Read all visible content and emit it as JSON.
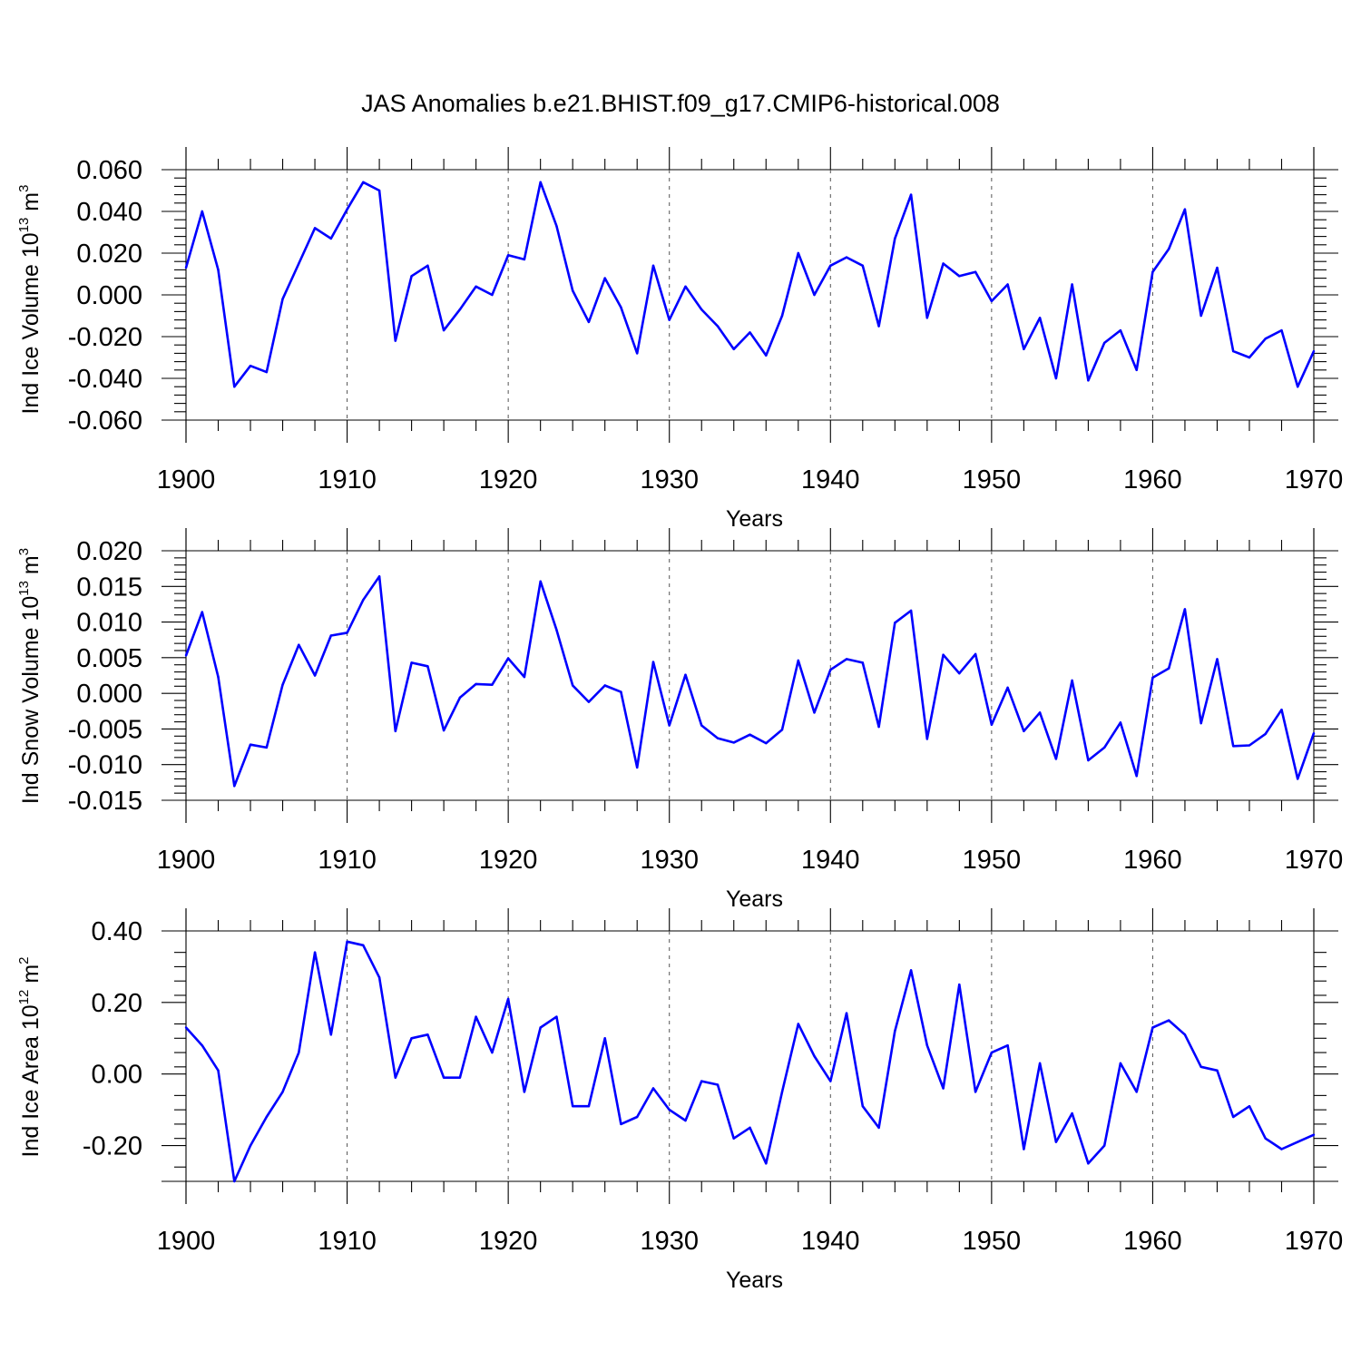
{
  "title": "JAS Anomalies b.e21.BHIST.f09_g17.CMIP6-historical.008",
  "colors": {
    "line": "#0000ff",
    "grid": "#555555",
    "axis": "#000000"
  },
  "chart_data": [
    {
      "type": "line",
      "ylabel": "Ind Ice Volume 10",
      "ylabel_exp": "13",
      "ylabel_unit": " m",
      "ylabel_unit_exp": "3",
      "xlabel": "Years",
      "xlim": [
        1900,
        1970
      ],
      "ylim": [
        -0.06,
        0.06
      ],
      "xticks": [
        1900,
        1910,
        1920,
        1930,
        1940,
        1950,
        1960,
        1970
      ],
      "xtick_labels": [
        "1900",
        "1910",
        "1920",
        "1930",
        "1940",
        "1950",
        "1960",
        "1970"
      ],
      "yticks": [
        -0.06,
        -0.04,
        -0.02,
        0.0,
        0.02,
        0.04,
        0.06
      ],
      "ytick_labels": [
        "-0.060",
        "-0.040",
        "-0.020",
        "0.000",
        "0.020",
        "0.040",
        "0.060"
      ],
      "grid": "vertical dashed at decades",
      "x_start": 1900,
      "values": [
        0.013,
        0.04,
        0.012,
        -0.044,
        -0.034,
        -0.037,
        -0.002,
        0.015,
        0.032,
        0.027,
        0.041,
        0.054,
        0.05,
        -0.022,
        0.009,
        0.014,
        -0.017,
        -0.007,
        0.004,
        0.0,
        0.019,
        0.017,
        0.054,
        0.033,
        0.002,
        -0.013,
        0.008,
        -0.006,
        -0.028,
        0.014,
        -0.012,
        0.004,
        -0.007,
        -0.015,
        -0.026,
        -0.018,
        -0.029,
        -0.01,
        0.02,
        0.0,
        0.014,
        0.018,
        0.014,
        -0.015,
        0.027,
        0.048,
        -0.011,
        0.015,
        0.009,
        0.011,
        -0.003,
        0.005,
        -0.026,
        -0.011,
        -0.04,
        0.005,
        -0.041,
        -0.023,
        -0.017,
        -0.036,
        0.011,
        0.022,
        0.041,
        -0.01,
        0.013,
        -0.027,
        -0.03,
        -0.021,
        -0.017,
        -0.044,
        -0.027
      ]
    },
    {
      "type": "line",
      "ylabel": "Ind Snow Volume 10",
      "ylabel_exp": "13",
      "ylabel_unit": " m",
      "ylabel_unit_exp": "3",
      "xlabel": "Years",
      "xlim": [
        1900,
        1970
      ],
      "ylim": [
        -0.015,
        0.02
      ],
      "xticks": [
        1900,
        1910,
        1920,
        1930,
        1940,
        1950,
        1960,
        1970
      ],
      "xtick_labels": [
        "1900",
        "1910",
        "1920",
        "1930",
        "1940",
        "1950",
        "1960",
        "1970"
      ],
      "yticks": [
        -0.015,
        -0.01,
        -0.005,
        0.0,
        0.005,
        0.01,
        0.015,
        0.02
      ],
      "ytick_labels": [
        "-0.015",
        "-0.010",
        "-0.005",
        "0.000",
        "0.005",
        "0.010",
        "0.015",
        "0.020"
      ],
      "grid": "vertical dashed at decades",
      "x_start": 1900,
      "values": [
        0.0053,
        0.0114,
        0.0023,
        -0.013,
        -0.0072,
        -0.0076,
        0.0012,
        0.0068,
        0.0025,
        0.0081,
        0.0085,
        0.0131,
        0.0164,
        -0.0053,
        0.0043,
        0.0038,
        -0.0052,
        -0.0006,
        0.0013,
        0.0012,
        0.0049,
        0.0023,
        0.0157,
        0.0089,
        0.0011,
        -0.0012,
        0.0011,
        0.0002,
        -0.0104,
        0.0044,
        -0.0045,
        0.0026,
        -0.0045,
        -0.0063,
        -0.0069,
        -0.0058,
        -0.007,
        -0.0051,
        0.0046,
        -0.0027,
        0.0033,
        0.0048,
        0.0043,
        -0.0047,
        0.0099,
        0.0116,
        -0.0064,
        0.0054,
        0.0028,
        0.0055,
        -0.0044,
        0.0008,
        -0.0053,
        -0.0027,
        -0.0092,
        0.0018,
        -0.0094,
        -0.0076,
        -0.0041,
        -0.0116,
        0.0022,
        0.0035,
        0.0118,
        -0.0042,
        0.0048,
        -0.0074,
        -0.0073,
        -0.0057,
        -0.0023,
        -0.012,
        -0.0056
      ]
    },
    {
      "type": "line",
      "ylabel": "Ind Ice Area 10",
      "ylabel_exp": "12",
      "ylabel_unit": " m",
      "ylabel_unit_exp": "2",
      "xlabel": "Years",
      "xlim": [
        1900,
        1970
      ],
      "ylim": [
        -0.3,
        0.4
      ],
      "xticks": [
        1900,
        1910,
        1920,
        1930,
        1940,
        1950,
        1960,
        1970
      ],
      "xtick_labels": [
        "1900",
        "1910",
        "1920",
        "1930",
        "1940",
        "1950",
        "1960",
        "1970"
      ],
      "yticks": [
        -0.2,
        0.0,
        0.2,
        0.4
      ],
      "ytick_labels": [
        "-0.20",
        "0.00",
        "0.20",
        "0.40"
      ],
      "grid": "vertical dashed at decades",
      "x_start": 1900,
      "values": [
        0.13,
        0.08,
        0.01,
        -0.3,
        -0.2,
        -0.12,
        -0.05,
        0.06,
        0.34,
        0.11,
        0.37,
        0.36,
        0.27,
        -0.01,
        0.1,
        0.11,
        -0.01,
        -0.01,
        0.16,
        0.06,
        0.21,
        -0.05,
        0.13,
        0.16,
        -0.09,
        -0.09,
        0.1,
        -0.14,
        -0.12,
        -0.04,
        -0.1,
        -0.13,
        -0.02,
        -0.03,
        -0.18,
        -0.15,
        -0.25,
        -0.05,
        0.14,
        0.05,
        -0.02,
        0.17,
        -0.09,
        -0.15,
        0.12,
        0.29,
        0.08,
        -0.04,
        0.25,
        -0.05,
        0.06,
        0.08,
        -0.21,
        0.03,
        -0.19,
        -0.11,
        -0.25,
        -0.2,
        0.03,
        -0.05,
        0.13,
        0.15,
        0.11,
        0.02,
        0.01,
        -0.12,
        -0.09,
        -0.18,
        -0.21,
        -0.19,
        -0.17
      ]
    }
  ]
}
